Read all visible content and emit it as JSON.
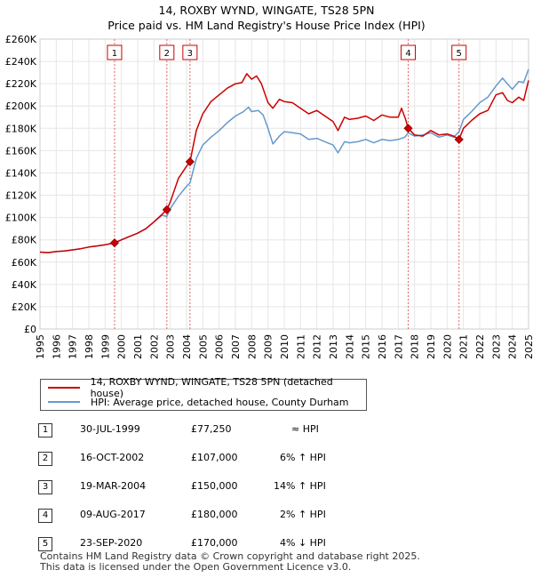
{
  "chart_data": {
    "type": "line",
    "title": "14, ROXBY WYND, WINGATE, TS28 5PN",
    "subtitle": "Price paid vs. HM Land Registry's House Price Index (HPI)",
    "xlim": [
      1995,
      2025
    ],
    "ylim": [
      0,
      260000
    ],
    "y_ticks": [
      0,
      20000,
      40000,
      60000,
      80000,
      100000,
      120000,
      140000,
      160000,
      180000,
      200000,
      220000,
      240000,
      260000
    ],
    "y_tick_labels": [
      "£0",
      "£20K",
      "£40K",
      "£60K",
      "£80K",
      "£100K",
      "£120K",
      "£140K",
      "£160K",
      "£180K",
      "£200K",
      "£220K",
      "£240K",
      "£260K"
    ],
    "x_ticks": [
      1995,
      1996,
      1997,
      1998,
      1999,
      2000,
      2001,
      2002,
      2003,
      2004,
      2005,
      2006,
      2007,
      2008,
      2009,
      2010,
      2011,
      2012,
      2013,
      2014,
      2015,
      2016,
      2017,
      2018,
      2019,
      2020,
      2021,
      2022,
      2023,
      2024,
      2025
    ],
    "grid": true,
    "colors": {
      "property": "#cc0000",
      "hpi": "#6699cc",
      "marker": "#cc0000",
      "vline": "#e06666"
    },
    "series": [
      {
        "name": "14, ROXBY WYND, WINGATE, TS28 5PN (detached house)",
        "points": [
          [
            1995.0,
            69000
          ],
          [
            1995.5,
            68500
          ],
          [
            1996.0,
            69500
          ],
          [
            1996.5,
            70000
          ],
          [
            1997.0,
            71000
          ],
          [
            1997.5,
            72000
          ],
          [
            1998.0,
            73500
          ],
          [
            1998.5,
            74500
          ],
          [
            1999.0,
            75500
          ],
          [
            1999.58,
            77250
          ],
          [
            2000.0,
            80000
          ],
          [
            2000.5,
            83000
          ],
          [
            2001.0,
            86000
          ],
          [
            2001.5,
            90000
          ],
          [
            2002.0,
            96000
          ],
          [
            2002.5,
            103000
          ],
          [
            2002.79,
            107000
          ],
          [
            2003.0,
            114000
          ],
          [
            2003.5,
            135000
          ],
          [
            2004.0,
            146000
          ],
          [
            2004.21,
            150000
          ],
          [
            2004.6,
            178000
          ],
          [
            2005.0,
            193000
          ],
          [
            2005.5,
            204000
          ],
          [
            2006.0,
            210000
          ],
          [
            2006.5,
            216000
          ],
          [
            2007.0,
            220000
          ],
          [
            2007.4,
            221000
          ],
          [
            2007.7,
            229000
          ],
          [
            2008.0,
            224000
          ],
          [
            2008.3,
            227000
          ],
          [
            2008.6,
            220000
          ],
          [
            2009.0,
            203000
          ],
          [
            2009.3,
            198000
          ],
          [
            2009.7,
            206000
          ],
          [
            2010.0,
            204000
          ],
          [
            2010.5,
            203000
          ],
          [
            2011.0,
            198000
          ],
          [
            2011.5,
            193000
          ],
          [
            2012.0,
            196000
          ],
          [
            2012.5,
            191000
          ],
          [
            2013.0,
            186000
          ],
          [
            2013.3,
            178000
          ],
          [
            2013.7,
            190000
          ],
          [
            2014.0,
            188000
          ],
          [
            2014.5,
            189000
          ],
          [
            2015.0,
            191000
          ],
          [
            2015.5,
            187000
          ],
          [
            2016.0,
            192000
          ],
          [
            2016.5,
            190000
          ],
          [
            2017.0,
            190000
          ],
          [
            2017.2,
            198000
          ],
          [
            2017.45,
            188000
          ],
          [
            2017.61,
            180000
          ],
          [
            2018.0,
            174000
          ],
          [
            2018.5,
            173000
          ],
          [
            2019.0,
            178000
          ],
          [
            2019.5,
            174000
          ],
          [
            2020.0,
            175000
          ],
          [
            2020.4,
            173000
          ],
          [
            2020.73,
            170000
          ],
          [
            2021.0,
            180000
          ],
          [
            2021.5,
            187000
          ],
          [
            2022.0,
            193000
          ],
          [
            2022.5,
            196000
          ],
          [
            2023.0,
            210000
          ],
          [
            2023.4,
            212000
          ],
          [
            2023.7,
            205000
          ],
          [
            2024.0,
            203000
          ],
          [
            2024.4,
            208000
          ],
          [
            2024.7,
            205000
          ],
          [
            2025.0,
            223000
          ]
        ]
      },
      {
        "name": "HPI: Average price, detached house, County Durham",
        "points": [
          [
            1995.0,
            69000
          ],
          [
            1995.5,
            68500
          ],
          [
            1996.0,
            69500
          ],
          [
            1996.5,
            70000
          ],
          [
            1997.0,
            71000
          ],
          [
            1997.5,
            72000
          ],
          [
            1998.0,
            73500
          ],
          [
            1998.5,
            74500
          ],
          [
            1999.0,
            75500
          ],
          [
            1999.58,
            77250
          ],
          [
            2000.0,
            80000
          ],
          [
            2000.5,
            83000
          ],
          [
            2001.0,
            86000
          ],
          [
            2001.5,
            90000
          ],
          [
            2002.0,
            96000
          ],
          [
            2002.5,
            102000
          ],
          [
            2002.79,
            101000
          ],
          [
            2003.0,
            108000
          ],
          [
            2003.5,
            119000
          ],
          [
            2004.0,
            128000
          ],
          [
            2004.21,
            131000
          ],
          [
            2004.6,
            153000
          ],
          [
            2005.0,
            165000
          ],
          [
            2005.5,
            172000
          ],
          [
            2006.0,
            178000
          ],
          [
            2006.5,
            185000
          ],
          [
            2007.0,
            191000
          ],
          [
            2007.5,
            195000
          ],
          [
            2007.8,
            199000
          ],
          [
            2008.0,
            195000
          ],
          [
            2008.4,
            196000
          ],
          [
            2008.7,
            192000
          ],
          [
            2009.0,
            180000
          ],
          [
            2009.3,
            166000
          ],
          [
            2009.7,
            173000
          ],
          [
            2010.0,
            177000
          ],
          [
            2010.5,
            176000
          ],
          [
            2011.0,
            175000
          ],
          [
            2011.5,
            170000
          ],
          [
            2012.0,
            171000
          ],
          [
            2012.5,
            168000
          ],
          [
            2013.0,
            165000
          ],
          [
            2013.3,
            158000
          ],
          [
            2013.7,
            168000
          ],
          [
            2014.0,
            167000
          ],
          [
            2014.5,
            168000
          ],
          [
            2015.0,
            170000
          ],
          [
            2015.5,
            167000
          ],
          [
            2016.0,
            170000
          ],
          [
            2016.5,
            169000
          ],
          [
            2017.0,
            170000
          ],
          [
            2017.4,
            172000
          ],
          [
            2017.61,
            176000
          ],
          [
            2018.0,
            173000
          ],
          [
            2018.5,
            174000
          ],
          [
            2019.0,
            176000
          ],
          [
            2019.5,
            172000
          ],
          [
            2020.0,
            174000
          ],
          [
            2020.4,
            172000
          ],
          [
            2020.73,
            177000
          ],
          [
            2021.0,
            188000
          ],
          [
            2021.5,
            195000
          ],
          [
            2022.0,
            203000
          ],
          [
            2022.5,
            208000
          ],
          [
            2023.0,
            218000
          ],
          [
            2023.4,
            225000
          ],
          [
            2023.7,
            220000
          ],
          [
            2024.0,
            215000
          ],
          [
            2024.4,
            222000
          ],
          [
            2024.7,
            221000
          ],
          [
            2025.0,
            233000
          ]
        ]
      }
    ],
    "sales": [
      {
        "num": "1",
        "x": 1999.58,
        "y": 77250
      },
      {
        "num": "2",
        "x": 2002.79,
        "y": 107000
      },
      {
        "num": "3",
        "x": 2004.21,
        "y": 150000
      },
      {
        "num": "4",
        "x": 2017.61,
        "y": 180000
      },
      {
        "num": "5",
        "x": 2020.73,
        "y": 170000
      }
    ]
  },
  "legend": {
    "property": "14, ROXBY WYND, WINGATE, TS28 5PN (detached house)",
    "hpi": "HPI: Average price, detached house, County Durham"
  },
  "transactions": [
    {
      "num": "1",
      "date": "30-JUL-1999",
      "price": "£77,250",
      "hpi": "≈ HPI"
    },
    {
      "num": "2",
      "date": "16-OCT-2002",
      "price": "£107,000",
      "hpi": "6% ↑ HPI"
    },
    {
      "num": "3",
      "date": "19-MAR-2004",
      "price": "£150,000",
      "hpi": "14% ↑ HPI"
    },
    {
      "num": "4",
      "date": "09-AUG-2017",
      "price": "£180,000",
      "hpi": "2% ↑ HPI"
    },
    {
      "num": "5",
      "date": "23-SEP-2020",
      "price": "£170,000",
      "hpi": "4% ↓ HPI"
    }
  ],
  "footer": {
    "line1": "Contains HM Land Registry data © Crown copyright and database right 2025.",
    "line2": "This data is licensed under the Open Government Licence v3.0."
  }
}
